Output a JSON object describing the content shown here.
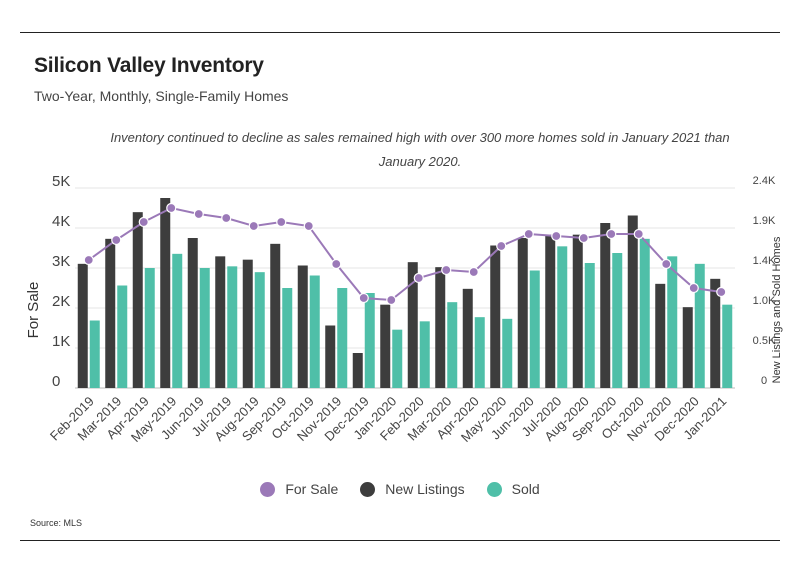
{
  "title": "Silicon Valley Inventory",
  "subtitle": "Two-Year, Monthly, Single-Family Homes",
  "annotation": "Inventory continued to decline as sales remained high with over 300 more homes sold in January 2021 than January 2020.",
  "source": "Source:  MLS",
  "colors": {
    "for_sale": "#9b79b8",
    "new_listings": "#3d3d3d",
    "sold": "#4fbfa8",
    "grid": "#e6e6e6"
  },
  "chart_data": {
    "type": "bar",
    "categories": [
      "Feb-2019",
      "Mar-2019",
      "Apr-2019",
      "May-2019",
      "Jun-2019",
      "Jul-2019",
      "Aug-2019",
      "Sep-2019",
      "Oct-2019",
      "Nov-2019",
      "Dec-2019",
      "Jan-2020",
      "Feb-2020",
      "Mar-2020",
      "Apr-2020",
      "May-2020",
      "Jun-2020",
      "Jul-2020",
      "Aug-2020",
      "Sep-2020",
      "Oct-2020",
      "Nov-2020",
      "Dec-2020",
      "Jan-2021"
    ],
    "ylabel": "For Sale",
    "y2label": "New Listings and Sold Homes",
    "ylim": [
      0,
      5000
    ],
    "y2lim": [
      0,
      2400
    ],
    "yticks": [
      "0",
      "1K",
      "2K",
      "3K",
      "4K",
      "5K"
    ],
    "y2ticks": [
      "0",
      "0.5K",
      "1.0K",
      "1.4K",
      "1.9K",
      "2.4K"
    ],
    "legend_position": "bottom",
    "series": [
      {
        "name": "For Sale",
        "type": "line",
        "axis": "left",
        "values": [
          3200,
          3700,
          4150,
          4500,
          4350,
          4250,
          4050,
          4150,
          4050,
          3100,
          2250,
          2200,
          2750,
          2950,
          2900,
          3550,
          3850,
          3800,
          3750,
          3850,
          3850,
          3100,
          2500,
          2400
        ]
      },
      {
        "name": "New Listings",
        "type": "bar",
        "axis": "right",
        "values": [
          1490,
          1790,
          2110,
          2280,
          1800,
          1580,
          1540,
          1730,
          1470,
          750,
          420,
          1000,
          1510,
          1450,
          1190,
          1710,
          1800,
          1840,
          1840,
          1980,
          2070,
          1250,
          970,
          1310
        ]
      },
      {
        "name": "Sold",
        "type": "bar",
        "axis": "right",
        "values": [
          810,
          1230,
          1440,
          1610,
          1440,
          1460,
          1390,
          1200,
          1350,
          1200,
          1140,
          700,
          800,
          1030,
          850,
          830,
          1410,
          1700,
          1500,
          1620,
          1790,
          1580,
          1490,
          1000
        ]
      }
    ]
  }
}
